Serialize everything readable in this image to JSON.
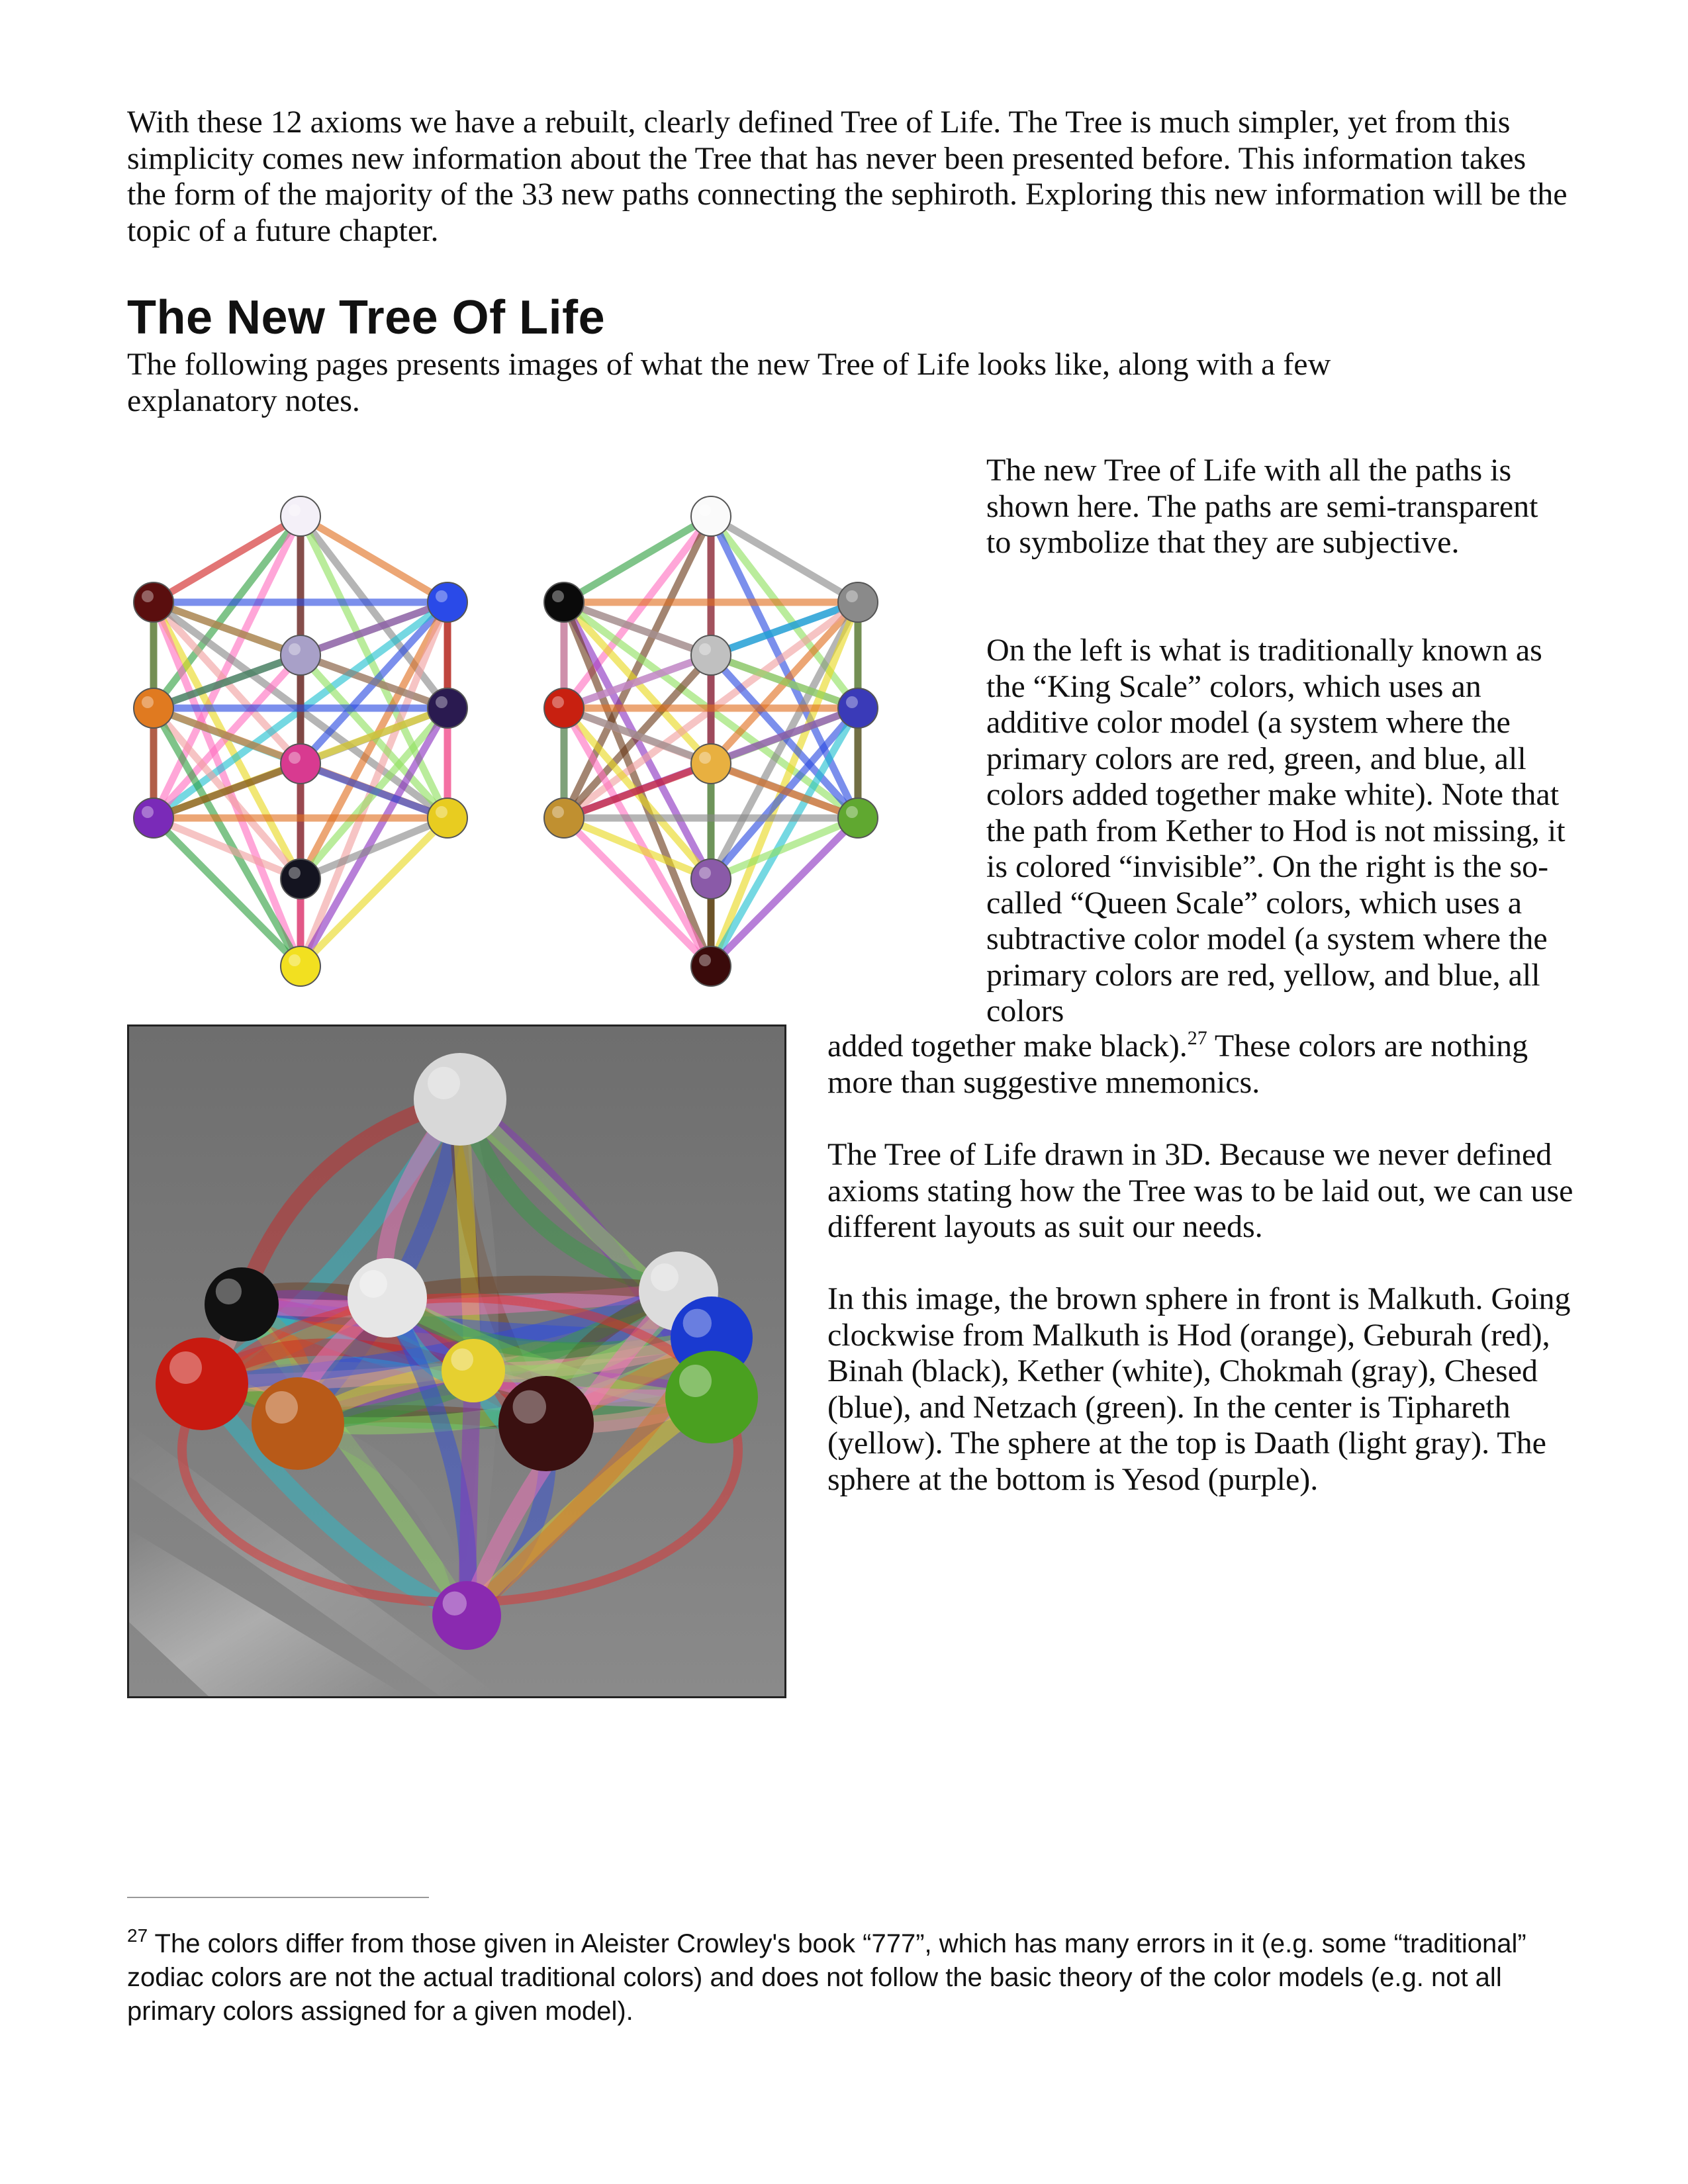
{
  "intro": "With these 12 axioms we have a rebuilt, clearly defined Tree of Life. The Tree is much simpler, yet from this simplicity comes new information about the Tree that has never been presented before. This information takes the form of the majority of the 33 new paths connecting the sephiroth. Exploring this new information will be the topic of a future chapter.",
  "section_title": "The New Tree Of Life",
  "section_intro": "The following pages presents images of what the new Tree of Life looks like, along with a few explanatory notes.",
  "caption_paths": "The new Tree of Life with all the paths is shown here. The paths are semi-transparent to symbolize that they are subjective.",
  "caption_scales_a": "On the left is what is traditionally known as the “King Scale” colors, which uses an additive color model (a system where the primary colors are red, green, and blue, all colors added together make white). Note that the path from Kether to Hod is not missing, it is colored “invisible”. On the right  is the so-called “Queen Scale” colors, which uses a subtractive color model (a system where the primary colors are red, yellow, and blue, all colors",
  "caption_scales_b": "added together make black).",
  "caption_scales_sup": "27",
  "caption_scales_c": " These colors are nothing more than suggestive mnemonics.",
  "caption_3d": "The Tree of Life drawn in 3D. Because we never defined axioms stating how the Tree was to be laid out, we can use different layouts as suit our needs.",
  "caption_spheres": "In this image, the brown sphere in front is Malkuth. Going clockwise from Malkuth is Hod (orange), Geburah (red), Binah (black), Kether (white), Chokmah (gray), Chesed (blue), and Netzach (green). In the center is Tiphareth (yellow). The sphere at the top is Daath (light gray). The sphere at the bottom is Yesod (purple).",
  "footnote_num": "27",
  "footnote_text": " The colors differ from those given in Aleister Crowley's book “777”, which has many errors in it (e.g. some “traditional” zodiac colors are not the actual traditional colors) and does not follow the basic theory of the color models (e.g. not all primary colors assigned for a given model).",
  "king_scale_colors": [
    "#f4f0f8",
    "#5a0e0e",
    "#2a4ae8",
    "#a8a0c8",
    "#e07a20",
    "#2a1a50",
    "#d83a90",
    "#7a2ab8",
    "#e8cc20",
    "#141420",
    "#f2e020"
  ],
  "queen_scale_colors": [
    "#fafafa",
    "#0a0a0a",
    "#8a8a8a",
    "#c0c0c0",
    "#c82010",
    "#3a3ab8",
    "#e8b040",
    "#c09030",
    "#60a830",
    "#8a5aa8",
    "#3a0a0a"
  ],
  "path_colors": [
    "#d02020",
    "#e8d820",
    "#2a4ae0",
    "#30a040",
    "#8a30c0",
    "#e07020",
    "#ff70c0",
    "#20c0d0",
    "#888888",
    "#6a3a1a",
    "#f0a0a0",
    "#90e060"
  ]
}
